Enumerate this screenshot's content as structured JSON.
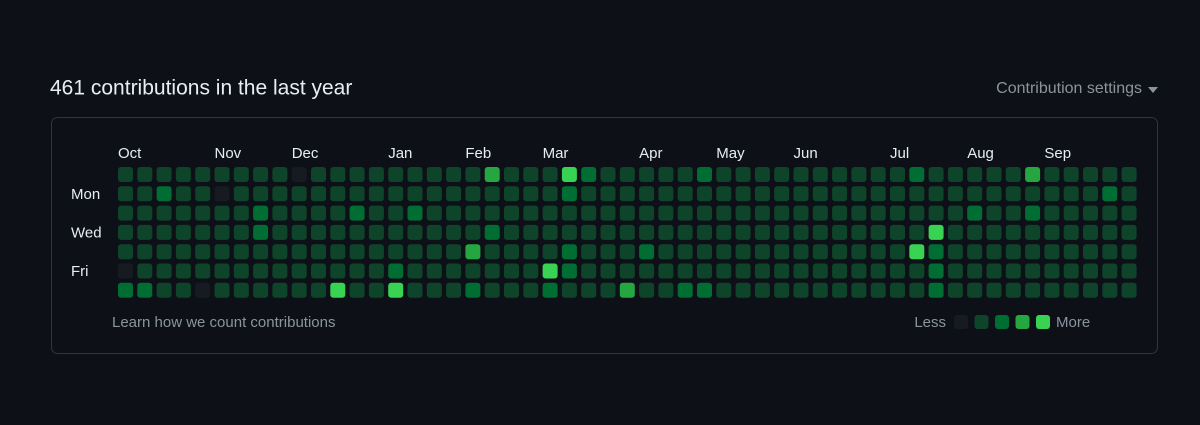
{
  "header": {
    "title": "461 contributions in the last year",
    "settings": "Contribution settings"
  },
  "contribution_graph": {
    "months": [
      "Oct",
      "Nov",
      "Dec",
      "Jan",
      "Feb",
      "Mar",
      "Apr",
      "May",
      "Jun",
      "Jul",
      "Aug",
      "Sep"
    ],
    "day_labels": [
      "Mon",
      "Wed",
      "Fri"
    ],
    "level_colors": [
      "#161b22",
      "#0e4429",
      "#006d32",
      "#26a641",
      "#39d353"
    ],
    "levels": [
      [
        1,
        1,
        1,
        1,
        1,
        1,
        1,
        1,
        1,
        0,
        1,
        1,
        1,
        1,
        1,
        1,
        1,
        1,
        1,
        3,
        1,
        1,
        1,
        4,
        2,
        1,
        1,
        1,
        1,
        1,
        2,
        1,
        1,
        1,
        1,
        1,
        1,
        1,
        1,
        1,
        1,
        2,
        1,
        1,
        1,
        1,
        1,
        3,
        1,
        1,
        1,
        1,
        1
      ],
      [
        1,
        1,
        2,
        1,
        1,
        0,
        1,
        1,
        1,
        1,
        1,
        1,
        1,
        1,
        1,
        1,
        1,
        1,
        1,
        1,
        1,
        1,
        1,
        2,
        1,
        1,
        1,
        1,
        1,
        1,
        1,
        1,
        1,
        1,
        1,
        1,
        1,
        1,
        1,
        1,
        1,
        1,
        1,
        1,
        1,
        1,
        1,
        1,
        1,
        1,
        1,
        2,
        1
      ],
      [
        1,
        1,
        1,
        1,
        1,
        1,
        1,
        2,
        1,
        1,
        1,
        1,
        2,
        1,
        1,
        2,
        1,
        1,
        1,
        1,
        1,
        1,
        1,
        1,
        1,
        1,
        1,
        1,
        1,
        1,
        1,
        1,
        1,
        1,
        1,
        1,
        1,
        1,
        1,
        1,
        1,
        1,
        1,
        1,
        2,
        1,
        1,
        2,
        1,
        1,
        1,
        1,
        1
      ],
      [
        1,
        1,
        1,
        1,
        1,
        1,
        1,
        2,
        1,
        1,
        1,
        1,
        1,
        1,
        1,
        1,
        1,
        1,
        1,
        2,
        1,
        1,
        1,
        1,
        1,
        1,
        1,
        1,
        1,
        1,
        1,
        1,
        1,
        1,
        1,
        1,
        1,
        1,
        1,
        1,
        1,
        1,
        4,
        1,
        1,
        1,
        1,
        1,
        1,
        1,
        1,
        1,
        1
      ],
      [
        1,
        1,
        1,
        1,
        1,
        1,
        1,
        1,
        1,
        1,
        1,
        1,
        1,
        1,
        1,
        1,
        1,
        1,
        3,
        1,
        1,
        1,
        1,
        2,
        1,
        1,
        1,
        2,
        1,
        1,
        1,
        1,
        1,
        1,
        1,
        1,
        1,
        1,
        1,
        1,
        1,
        4,
        2,
        1,
        1,
        1,
        1,
        1,
        1,
        1,
        1,
        1,
        1
      ],
      [
        0,
        1,
        1,
        1,
        1,
        1,
        1,
        1,
        1,
        1,
        1,
        1,
        1,
        1,
        2,
        1,
        1,
        1,
        1,
        1,
        1,
        1,
        4,
        2,
        1,
        1,
        1,
        1,
        1,
        1,
        1,
        1,
        1,
        1,
        1,
        1,
        1,
        1,
        1,
        1,
        1,
        1,
        2,
        1,
        1,
        1,
        1,
        1,
        1,
        1,
        1,
        1,
        1
      ],
      [
        2,
        2,
        1,
        1,
        0,
        1,
        1,
        1,
        1,
        1,
        1,
        4,
        1,
        1,
        4,
        1,
        1,
        1,
        2,
        1,
        1,
        1,
        2,
        1,
        1,
        1,
        3,
        1,
        1,
        2,
        2,
        1,
        1,
        1,
        1,
        1,
        1,
        1,
        1,
        1,
        1,
        1,
        2,
        1,
        1,
        1,
        1,
        1,
        1,
        1,
        1,
        1,
        1
      ]
    ]
  },
  "footer": {
    "learn_link": "Learn how we count contributions",
    "less": "Less",
    "more": "More"
  }
}
